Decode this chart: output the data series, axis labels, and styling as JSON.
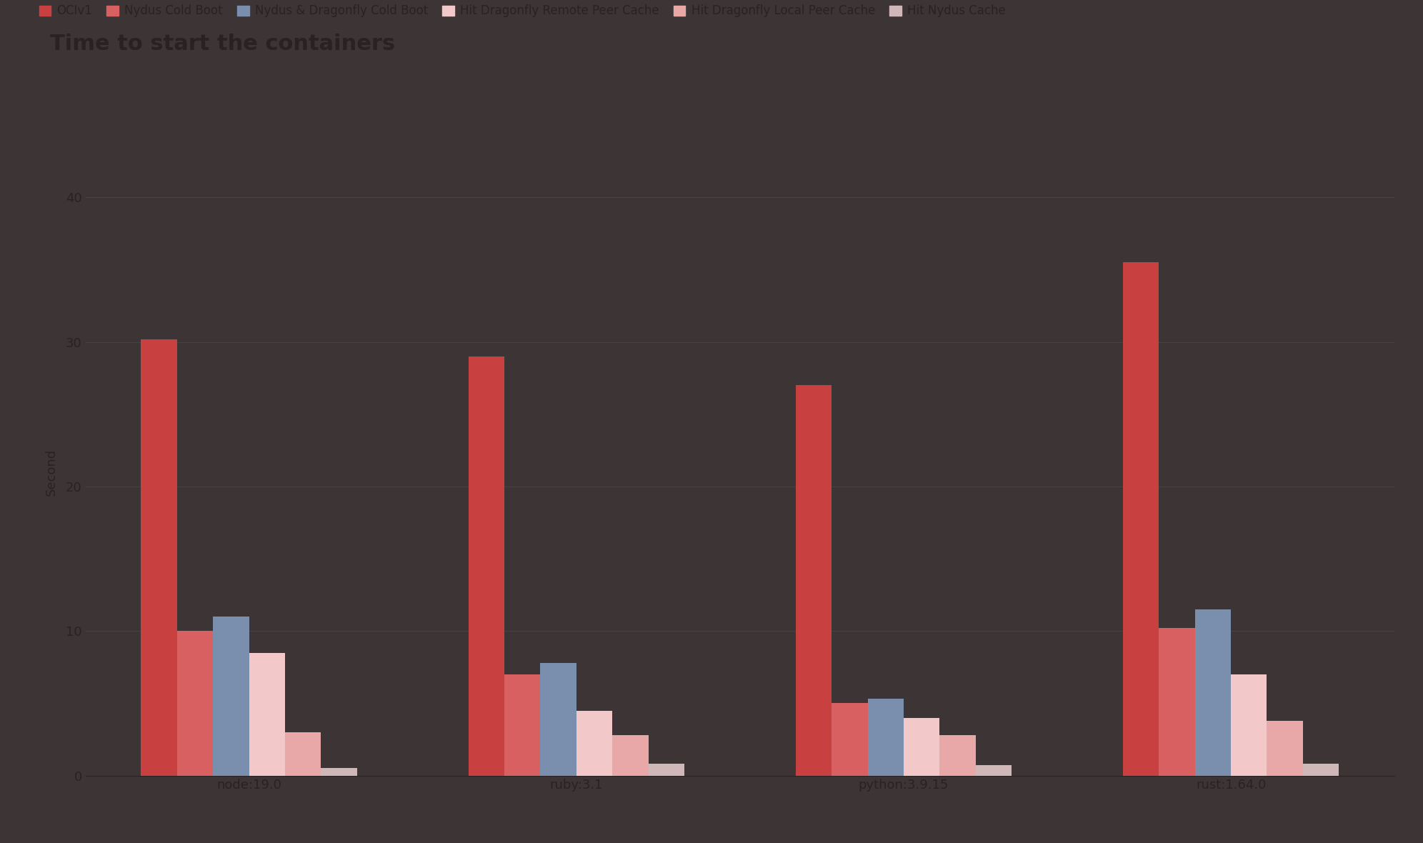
{
  "title": "Time to start the containers",
  "ylabel": "Second",
  "background_color": "#3d3535",
  "text_color": "#2a2222",
  "grid_color": "#4a4040",
  "categories": [
    "node:19.0",
    "ruby:3.1",
    "python:3.9.15",
    "rust:1.64.0"
  ],
  "series": [
    {
      "label": "OCIv1",
      "color": "#c94040",
      "values": [
        30.2,
        29.0,
        27.0,
        35.5
      ]
    },
    {
      "label": "Nydus Cold Boot",
      "color": "#d96060",
      "values": [
        10.0,
        7.0,
        5.0,
        10.2
      ]
    },
    {
      "label": "Nydus & Dragonfly Cold Boot",
      "color": "#7a8fad",
      "values": [
        11.0,
        7.8,
        5.3,
        11.5
      ]
    },
    {
      "label": "Hit Dragonfly Remote Peer Cache",
      "color": "#f2c8c8",
      "values": [
        8.5,
        4.5,
        4.0,
        7.0
      ]
    },
    {
      "label": "Hit Dragonfly Local Peer Cache",
      "color": "#e8a8a8",
      "values": [
        3.0,
        2.8,
        2.8,
        3.8
      ]
    },
    {
      "label": "Hit Nydus Cache",
      "color": "#d0b8b8",
      "values": [
        0.5,
        0.8,
        0.7,
        0.8
      ]
    }
  ],
  "ylim": [
    0,
    42
  ],
  "yticks": [
    0,
    10,
    20,
    30,
    40
  ],
  "title_fontsize": 22,
  "axis_fontsize": 13,
  "tick_fontsize": 13,
  "legend_fontsize": 12,
  "bar_width": 0.11
}
